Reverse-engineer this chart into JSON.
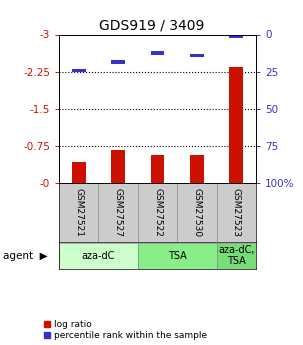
{
  "title": "GDS919 / 3409",
  "samples": [
    "GSM27521",
    "GSM27527",
    "GSM27522",
    "GSM27530",
    "GSM27523"
  ],
  "log_ratios": [
    -0.42,
    -0.67,
    -0.57,
    -0.56,
    -2.35
  ],
  "percentile_ranks": [
    -2.27,
    -2.44,
    -2.63,
    -2.57,
    -2.97
  ],
  "ylim": [
    -3,
    0
  ],
  "yticks_left": [
    0,
    -0.75,
    -1.5,
    -2.25,
    -3
  ],
  "ytick_labels_left": [
    "-0",
    "-0.75",
    "-1.5",
    "-2.25",
    "-3"
  ],
  "yticks_right": [
    100,
    75,
    50,
    25,
    0
  ],
  "ytick_labels_right": [
    "100%",
    "75",
    "50",
    "25",
    "0"
  ],
  "bar_color": "#cc1100",
  "blue_color": "#3333cc",
  "agent_groups": [
    {
      "label": "aza-dC",
      "start": 0,
      "end": 1,
      "color": "#ccffcc"
    },
    {
      "label": "TSA",
      "start": 2,
      "end": 3,
      "color": "#88ee88"
    },
    {
      "label": "aza-dC,\nTSA",
      "start": 4,
      "end": 4,
      "color": "#77dd77"
    }
  ],
  "background_color": "#ffffff",
  "plot_bg": "#ffffff",
  "sample_bg": "#cccccc",
  "bar_width": 0.35
}
